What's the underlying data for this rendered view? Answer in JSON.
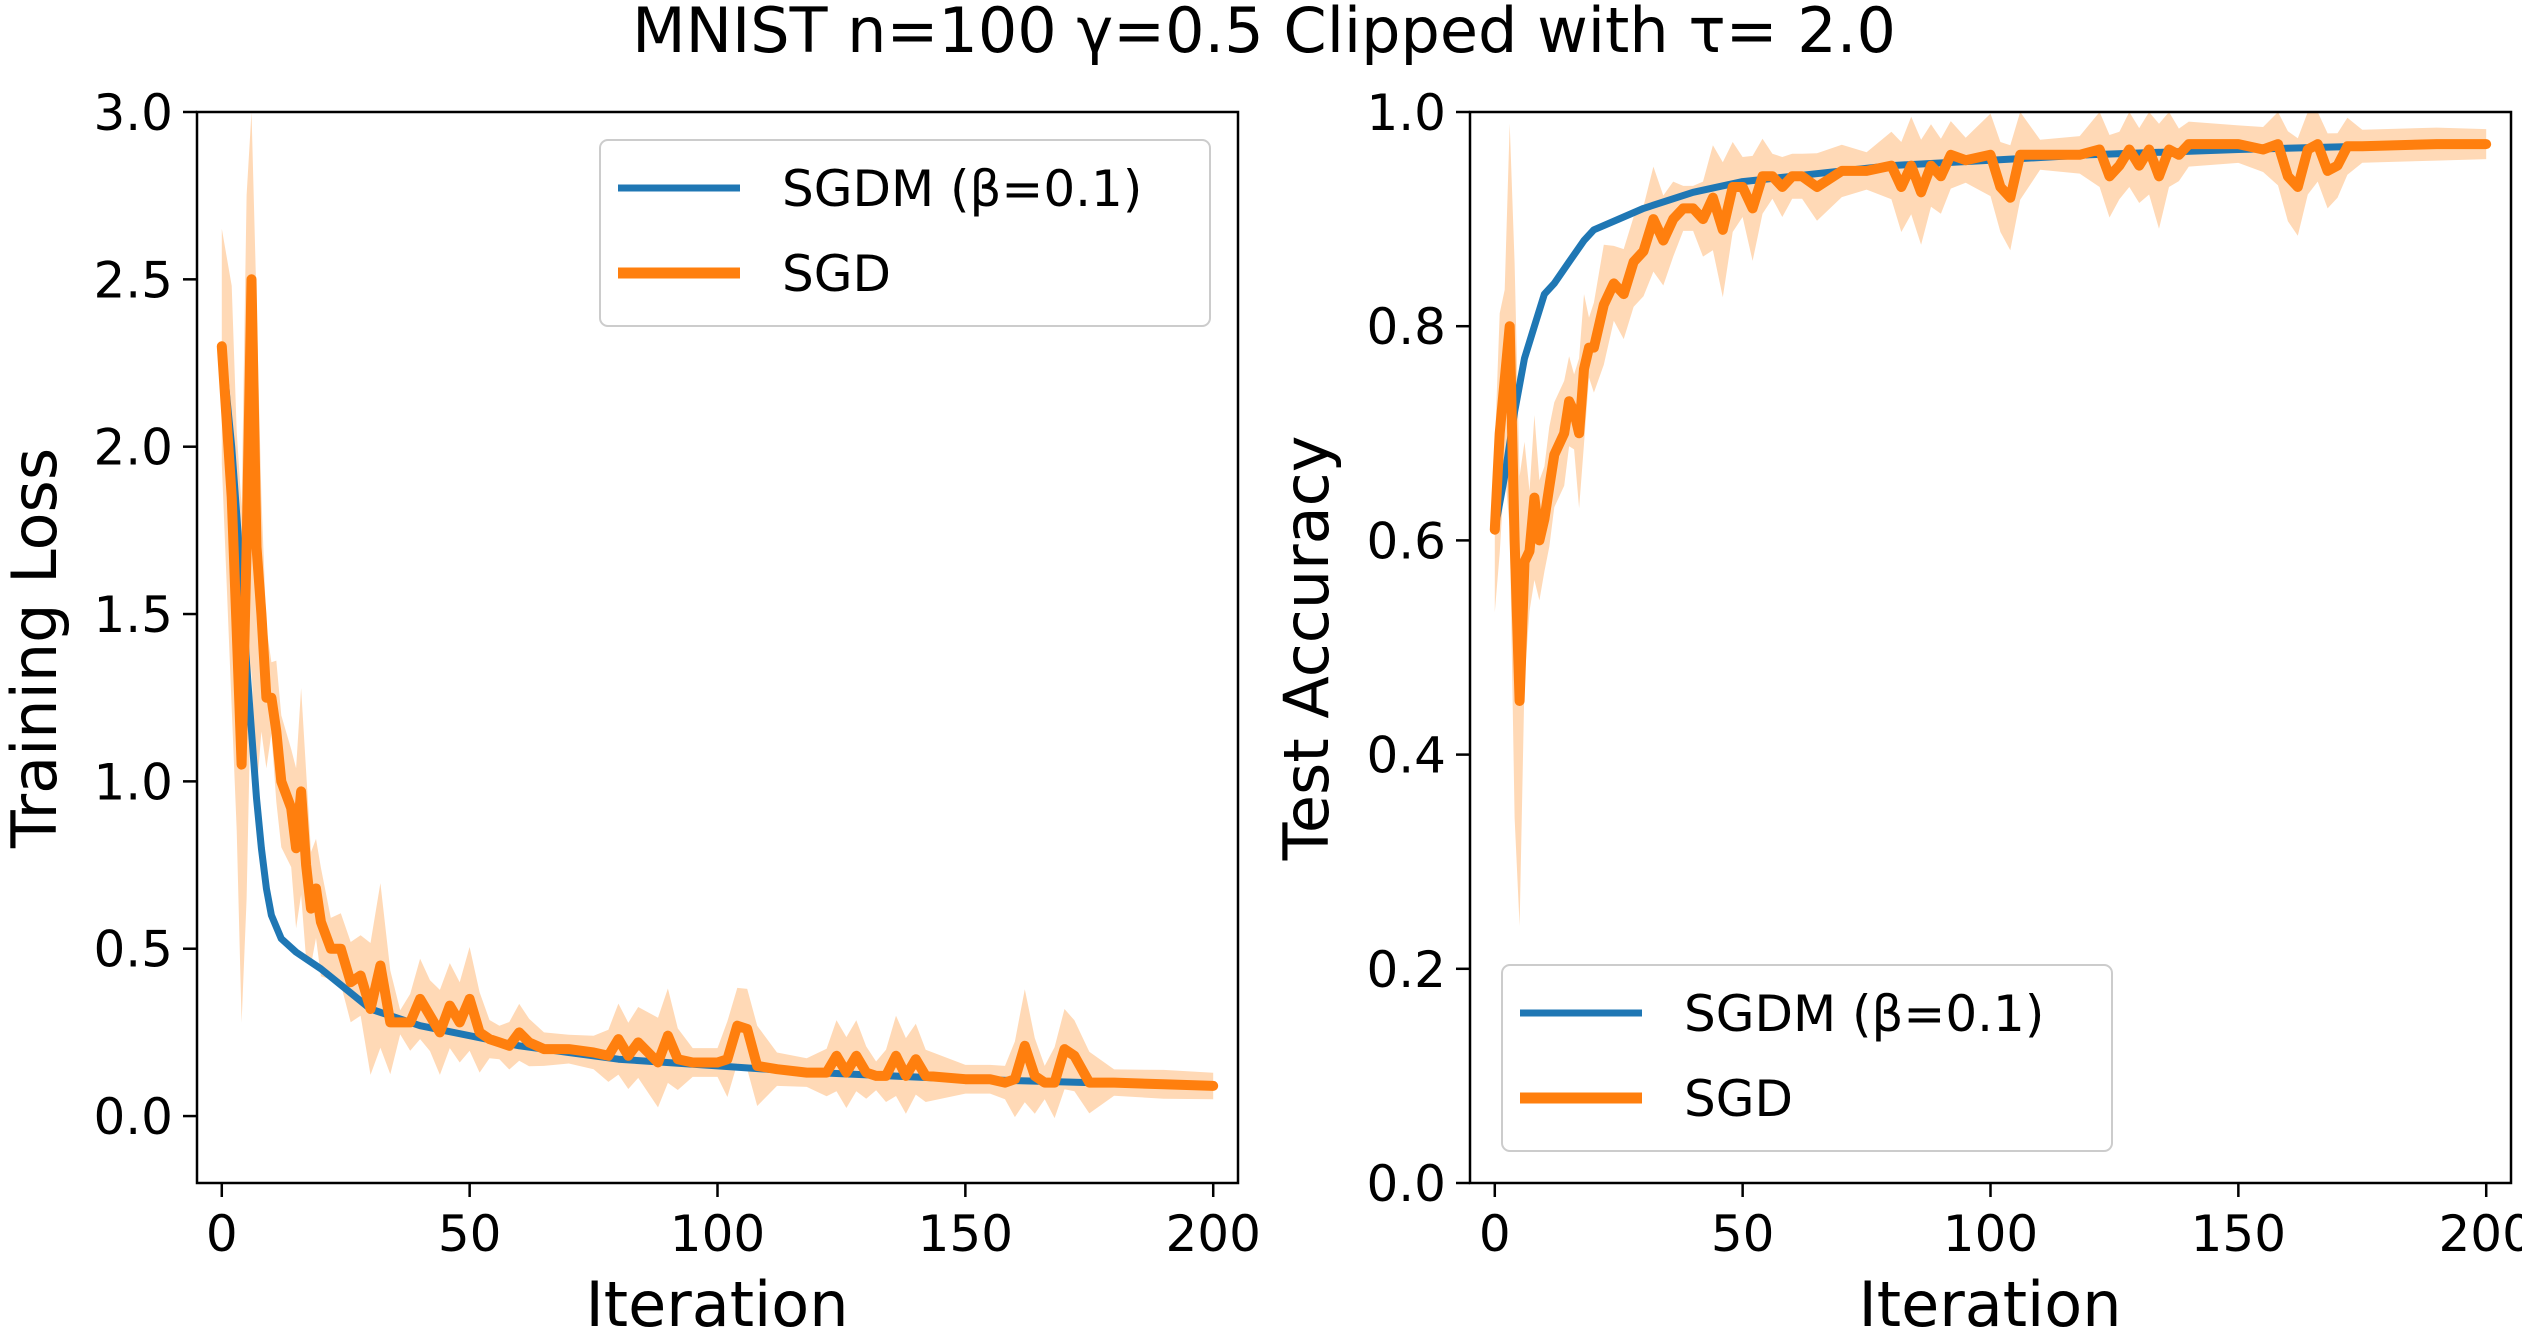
{
  "figure": {
    "title": "MNIST n=100 γ=0.5 Clipped with τ= 2.0"
  },
  "colors": {
    "sgdm": "#1f77b4",
    "sgd": "#ff7f0e",
    "sgd_band": "#ffbf86"
  },
  "chart_data": [
    {
      "type": "line",
      "xlabel": "Iteration",
      "ylabel": "Training Loss",
      "xlim": [
        -5,
        205
      ],
      "ylim": [
        -0.2,
        3.0
      ],
      "xticks": [
        "0",
        "50",
        "100",
        "150",
        "200"
      ],
      "yticks": [
        "0.0",
        "0.5",
        "1.0",
        "1.5",
        "2.0",
        "2.5",
        "3.0"
      ],
      "grid": false,
      "legend_position": "upper right",
      "series": [
        {
          "name": "SGDM (β=0.1)",
          "color": "#1f77b4",
          "x": [
            0,
            2,
            4,
            5,
            6,
            7,
            8,
            9,
            10,
            12,
            15,
            20,
            25,
            30,
            40,
            50,
            60,
            70,
            80,
            100,
            120,
            150,
            175,
            200
          ],
          "y": [
            2.3,
            2.0,
            1.6,
            1.35,
            1.15,
            0.95,
            0.8,
            0.68,
            0.6,
            0.53,
            0.49,
            0.44,
            0.38,
            0.32,
            0.27,
            0.24,
            0.21,
            0.19,
            0.17,
            0.15,
            0.13,
            0.11,
            0.1,
            0.09
          ]
        },
        {
          "name": "SGD",
          "color": "#ff7f0e",
          "x": [
            0,
            2,
            3,
            4,
            5,
            6,
            7,
            8,
            9,
            10,
            11,
            12,
            14,
            15,
            16,
            17,
            18,
            19,
            20,
            22,
            24,
            26,
            28,
            30,
            32,
            34,
            36,
            38,
            40,
            42,
            44,
            46,
            48,
            50,
            52,
            54,
            56,
            58,
            60,
            62,
            65,
            70,
            75,
            78,
            80,
            82,
            84,
            88,
            90,
            92,
            95,
            100,
            102,
            104,
            106,
            108,
            112,
            118,
            122,
            124,
            126,
            128,
            130,
            132,
            134,
            136,
            138,
            140,
            142,
            150,
            155,
            158,
            160,
            162,
            164,
            166,
            168,
            170,
            172,
            175,
            180,
            190,
            200
          ],
          "y": [
            2.3,
            1.85,
            1.45,
            1.05,
            1.7,
            2.5,
            1.7,
            1.5,
            1.25,
            1.25,
            1.15,
            1.0,
            0.92,
            0.8,
            0.97,
            0.75,
            0.62,
            0.68,
            0.58,
            0.5,
            0.5,
            0.4,
            0.42,
            0.32,
            0.45,
            0.28,
            0.28,
            0.28,
            0.35,
            0.3,
            0.25,
            0.33,
            0.28,
            0.35,
            0.25,
            0.23,
            0.22,
            0.21,
            0.25,
            0.22,
            0.2,
            0.2,
            0.19,
            0.18,
            0.23,
            0.18,
            0.22,
            0.16,
            0.24,
            0.17,
            0.16,
            0.16,
            0.17,
            0.27,
            0.26,
            0.15,
            0.14,
            0.13,
            0.13,
            0.18,
            0.13,
            0.18,
            0.13,
            0.12,
            0.12,
            0.18,
            0.12,
            0.17,
            0.12,
            0.11,
            0.11,
            0.1,
            0.11,
            0.21,
            0.12,
            0.1,
            0.1,
            0.2,
            0.18,
            0.1,
            0.1,
            0.095,
            0.09
          ]
        }
      ]
    },
    {
      "type": "line",
      "xlabel": "Iteration",
      "ylabel": "Test Accuracy",
      "xlim": [
        -5,
        205
      ],
      "ylim": [
        0.0,
        1.0
      ],
      "xticks": [
        "0",
        "50",
        "100",
        "150",
        "200"
      ],
      "yticks": [
        "0.0",
        "0.2",
        "0.4",
        "0.6",
        "0.8",
        "1.0"
      ],
      "grid": false,
      "legend_position": "lower left",
      "series": [
        {
          "name": "SGDM (β=0.1)",
          "color": "#1f77b4",
          "x": [
            0,
            2,
            4,
            6,
            8,
            10,
            12,
            15,
            18,
            20,
            25,
            30,
            40,
            50,
            60,
            80,
            100,
            120,
            150,
            175,
            200
          ],
          "y": [
            0.61,
            0.66,
            0.72,
            0.77,
            0.8,
            0.83,
            0.84,
            0.86,
            0.88,
            0.89,
            0.9,
            0.91,
            0.925,
            0.935,
            0.94,
            0.95,
            0.955,
            0.96,
            0.965,
            0.968,
            0.97
          ]
        },
        {
          "name": "SGD",
          "color": "#ff7f0e",
          "x": [
            0,
            1,
            2,
            3,
            4,
            5,
            6,
            7,
            8,
            9,
            10,
            11,
            12,
            14,
            15,
            16,
            17,
            18,
            19,
            20,
            22,
            24,
            26,
            28,
            30,
            32,
            34,
            36,
            38,
            40,
            42,
            44,
            46,
            48,
            50,
            52,
            54,
            56,
            58,
            60,
            62,
            65,
            70,
            75,
            80,
            82,
            84,
            86,
            88,
            90,
            92,
            95,
            100,
            102,
            104,
            106,
            110,
            118,
            122,
            124,
            126,
            128,
            130,
            132,
            134,
            136,
            138,
            140,
            150,
            155,
            158,
            160,
            162,
            164,
            166,
            168,
            170,
            172,
            175,
            190,
            200
          ],
          "y": [
            0.61,
            0.7,
            0.75,
            0.8,
            0.6,
            0.45,
            0.58,
            0.59,
            0.64,
            0.6,
            0.62,
            0.65,
            0.68,
            0.7,
            0.73,
            0.72,
            0.7,
            0.76,
            0.78,
            0.78,
            0.82,
            0.84,
            0.83,
            0.86,
            0.87,
            0.9,
            0.88,
            0.9,
            0.91,
            0.91,
            0.9,
            0.92,
            0.89,
            0.93,
            0.93,
            0.91,
            0.94,
            0.94,
            0.93,
            0.94,
            0.94,
            0.93,
            0.945,
            0.945,
            0.95,
            0.93,
            0.95,
            0.925,
            0.95,
            0.94,
            0.96,
            0.955,
            0.96,
            0.93,
            0.92,
            0.96,
            0.96,
            0.96,
            0.965,
            0.94,
            0.95,
            0.965,
            0.95,
            0.965,
            0.94,
            0.965,
            0.96,
            0.97,
            0.97,
            0.965,
            0.97,
            0.94,
            0.93,
            0.965,
            0.97,
            0.945,
            0.95,
            0.968,
            0.968,
            0.97,
            0.97
          ]
        }
      ]
    }
  ]
}
